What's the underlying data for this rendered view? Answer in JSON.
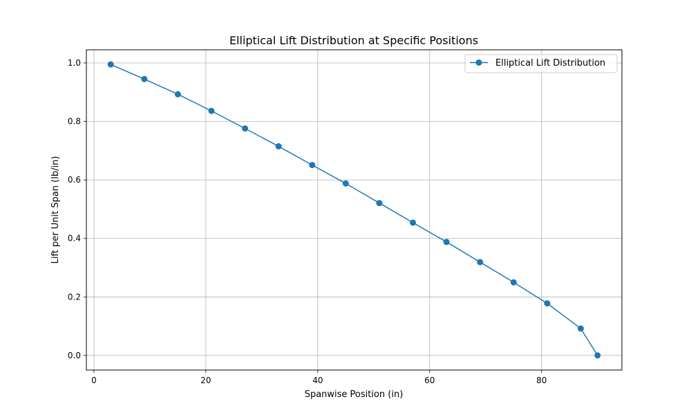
{
  "chart_data": {
    "type": "line",
    "title": "Elliptical Lift Distribution at Specific Positions",
    "xlabel": "Spanwise Position (in)",
    "ylabel": "Lift per Unit Span (lb/in)",
    "xlim": [
      -1.35,
      94.35
    ],
    "ylim": [
      -0.05,
      1.045
    ],
    "xticks": [
      0,
      20,
      40,
      60,
      80
    ],
    "yticks": [
      0.0,
      0.2,
      0.4,
      0.6,
      0.8,
      1.0
    ],
    "xtick_labels": [
      "0",
      "20",
      "40",
      "60",
      "80"
    ],
    "ytick_labels": [
      "0.0",
      "0.2",
      "0.4",
      "0.6",
      "0.8",
      "1.0"
    ],
    "grid": true,
    "legend_position": "top-right",
    "colors": {
      "series": "#1f77b4",
      "grid": "#b0b0b0"
    },
    "series": [
      {
        "name": "Elliptical Lift Distribution",
        "x": [
          3,
          9,
          15,
          21,
          27,
          33,
          39,
          45,
          51,
          57,
          63,
          69,
          75,
          81,
          87,
          90
        ],
        "y": [
          0.995,
          0.945,
          0.893,
          0.836,
          0.776,
          0.715,
          0.651,
          0.588,
          0.521,
          0.454,
          0.388,
          0.319,
          0.25,
          0.178,
          0.092,
          0.0
        ]
      }
    ]
  }
}
